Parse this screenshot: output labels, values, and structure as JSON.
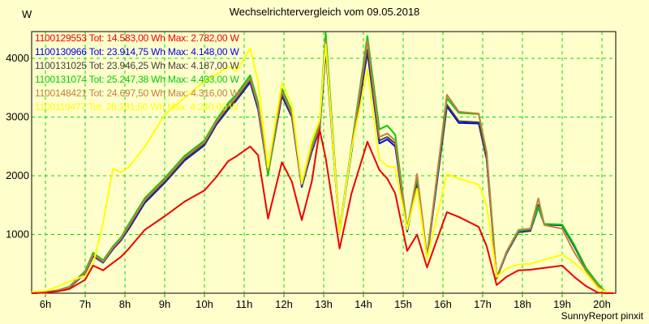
{
  "header": {
    "title": "Wechselrichtervergleich vom 09.05.2018"
  },
  "footer": {
    "credit": "SunnyReport pinxit"
  },
  "chart_data": {
    "type": "line",
    "title": "Wechselrichtervergleich vom 09.05.2018",
    "xlabel": "",
    "ylabel": "W",
    "background": "#ffffcc",
    "axis_color": "#000000",
    "grid": {
      "color": "#00dd00",
      "style": "dashed",
      "x_step_hours": 1,
      "y_step_w": 1000
    },
    "tick_mark_color": "#00aa00",
    "legend_position": "top-left",
    "xlim_hours": [
      5.65,
      20.35
    ],
    "ylim": [
      0,
      4455
    ],
    "x_ticks": [
      {
        "t": 6,
        "label": "6h"
      },
      {
        "t": 7,
        "label": "7h"
      },
      {
        "t": 8,
        "label": "8h"
      },
      {
        "t": 9,
        "label": "9h"
      },
      {
        "t": 10,
        "label": "10h"
      },
      {
        "t": 11,
        "label": "11h"
      },
      {
        "t": 12,
        "label": "12h"
      },
      {
        "t": 13,
        "label": "13h"
      },
      {
        "t": 14,
        "label": "14h"
      },
      {
        "t": 15,
        "label": "15h"
      },
      {
        "t": 16,
        "label": "16h"
      },
      {
        "t": 17,
        "label": "17h"
      },
      {
        "t": 18,
        "label": "18h"
      },
      {
        "t": 19,
        "label": "19h"
      },
      {
        "t": 20,
        "label": "20h"
      }
    ],
    "y_ticks": [
      {
        "v": 1000,
        "label": "1000"
      },
      {
        "v": 2000,
        "label": "2000"
      },
      {
        "v": 3000,
        "label": "3000"
      },
      {
        "v": 4000,
        "label": "4000"
      }
    ],
    "x_hours": [
      5.65,
      6.0,
      6.3,
      6.6,
      7.0,
      7.2,
      7.45,
      7.7,
      7.9,
      8.1,
      8.5,
      9.0,
      9.5,
      10.0,
      10.3,
      10.6,
      10.8,
      11.15,
      11.35,
      11.6,
      11.95,
      12.2,
      12.45,
      12.7,
      12.9,
      13.05,
      13.4,
      13.7,
      14.1,
      14.4,
      14.6,
      14.8,
      15.1,
      15.35,
      15.6,
      16.1,
      16.4,
      16.9,
      17.1,
      17.35,
      17.6,
      17.9,
      18.2,
      18.4,
      18.55,
      19.0,
      19.3,
      19.6,
      19.9,
      20.1,
      20.3
    ],
    "series": [
      {
        "id": "1100129553",
        "color": "#ee0000",
        "total_label": "Tot: 14.583,00 Wh",
        "max_label": "Max: 2.782,00 W",
        "legend_label": "1100129553 Tot: 14.583,00 Wh Max: 2.782,00 W",
        "values_w": [
          0,
          10,
          30,
          70,
          230,
          470,
          390,
          520,
          620,
          760,
          1080,
          1310,
          1560,
          1750,
          1980,
          2250,
          2330,
          2500,
          2350,
          1270,
          2230,
          1900,
          1245,
          1900,
          2782,
          2300,
          760,
          1700,
          2580,
          2100,
          1950,
          1700,
          720,
          1000,
          440,
          1380,
          1300,
          1130,
          800,
          140,
          280,
          390,
          400,
          420,
          430,
          470,
          280,
          120,
          10,
          0,
          0
        ]
      },
      {
        "id": "1100130966",
        "color": "#0000ee",
        "total_label": "Tot: 23.914,75 Wh",
        "max_label": "Max: 4.148,00 W",
        "legend_label": "1100130966 Tot: 23.914,75 Wh Max: 4.148,00 W",
        "values_w": [
          0,
          15,
          40,
          90,
          340,
          630,
          520,
          750,
          900,
          1100,
          1540,
          1880,
          2260,
          2520,
          2870,
          3130,
          3280,
          3590,
          3130,
          2030,
          3360,
          3000,
          1810,
          2410,
          2790,
          4148,
          1030,
          2410,
          4100,
          2550,
          2620,
          2500,
          1050,
          1870,
          600,
          3180,
          2900,
          2890,
          2280,
          250,
          680,
          1040,
          1060,
          1460,
          1170,
          1155,
          800,
          415,
          145,
          5,
          0
        ]
      },
      {
        "id": "1100131025",
        "color": "#404040",
        "total_label": "Tot: 23.946,25 Wh",
        "max_label": "Max: 4.187,00 W",
        "legend_label": "1100131025 Tot: 23.946,25 Wh Max: 4.187,00 W",
        "values_w": [
          0,
          15,
          40,
          95,
          350,
          640,
          530,
          760,
          910,
          1120,
          1560,
          1900,
          2280,
          2540,
          2890,
          3150,
          3300,
          3620,
          3160,
          2050,
          3390,
          3020,
          1830,
          2430,
          2820,
          4187,
          1040,
          2430,
          4150,
          2600,
          2660,
          2550,
          1060,
          1900,
          610,
          3210,
          2930,
          2910,
          2300,
          255,
          690,
          1050,
          1070,
          1505,
          1175,
          1160,
          810,
          420,
          150,
          5,
          0
        ]
      },
      {
        "id": "1100131074",
        "color": "#00cc00",
        "total_label": "Tot: 25.247,38 Wh",
        "max_label": "Max: 4.433,00 W",
        "legend_label": "1100131074 Tot: 25.247,38 Wh Max: 4.433,00 W",
        "values_w": [
          0,
          20,
          50,
          110,
          380,
          690,
          560,
          800,
          950,
          1180,
          1620,
          1960,
          2340,
          2600,
          2950,
          3240,
          3380,
          3710,
          3250,
          2000,
          3480,
          3100,
          1880,
          2500,
          2900,
          4433,
          1060,
          2500,
          4380,
          2790,
          2855,
          2700,
          1100,
          1980,
          640,
          3320,
          3070,
          3050,
          2400,
          270,
          700,
          1060,
          1090,
          1470,
          1180,
          1170,
          830,
          430,
          160,
          10,
          0
        ]
      },
      {
        "id": "1100148421",
        "color": "#c08040",
        "total_label": "Tot: 24.697,50 Wh",
        "max_label": "Max: 4.316,00 W",
        "legend_label": "1100148421 Tot: 24.697,50 Wh Max: 4.316,00 W",
        "values_w": [
          0,
          15,
          45,
          100,
          360,
          660,
          540,
          780,
          930,
          1150,
          1590,
          1930,
          2310,
          2570,
          2920,
          3200,
          3340,
          3660,
          3200,
          2080,
          3440,
          3060,
          1850,
          2470,
          2860,
          4316,
          1050,
          2470,
          4300,
          2660,
          2720,
          2600,
          1080,
          2030,
          620,
          3380,
          3090,
          3060,
          2380,
          260,
          710,
          1080,
          1100,
          1615,
          1160,
          1100,
          700,
          380,
          130,
          5,
          0
        ]
      },
      {
        "id": "1100119477",
        "color": "#ffff00",
        "total_label": "Tot: 26.281,50 Wh",
        "max_label": "Max: 4.240,00 W",
        "legend_label": "1100119477 Tot: 26.281,50 Wh Max: 4.240,00 W",
        "values_w": [
          15,
          40,
          110,
          200,
          300,
          500,
          1200,
          2120,
          2060,
          2150,
          2500,
          3040,
          3330,
          3610,
          3720,
          3860,
          3780,
          4170,
          3600,
          2140,
          3590,
          3200,
          1870,
          2600,
          2950,
          4240,
          1030,
          2450,
          3800,
          2280,
          2160,
          2140,
          1090,
          1780,
          580,
          2030,
          1950,
          1850,
          1500,
          280,
          420,
          490,
          500,
          540,
          570,
          655,
          520,
          340,
          90,
          20,
          0
        ]
      }
    ],
    "draw_order": [
      "1100130966",
      "1100131025",
      "1100131074",
      "1100148421",
      "1100119477",
      "1100129553"
    ]
  }
}
